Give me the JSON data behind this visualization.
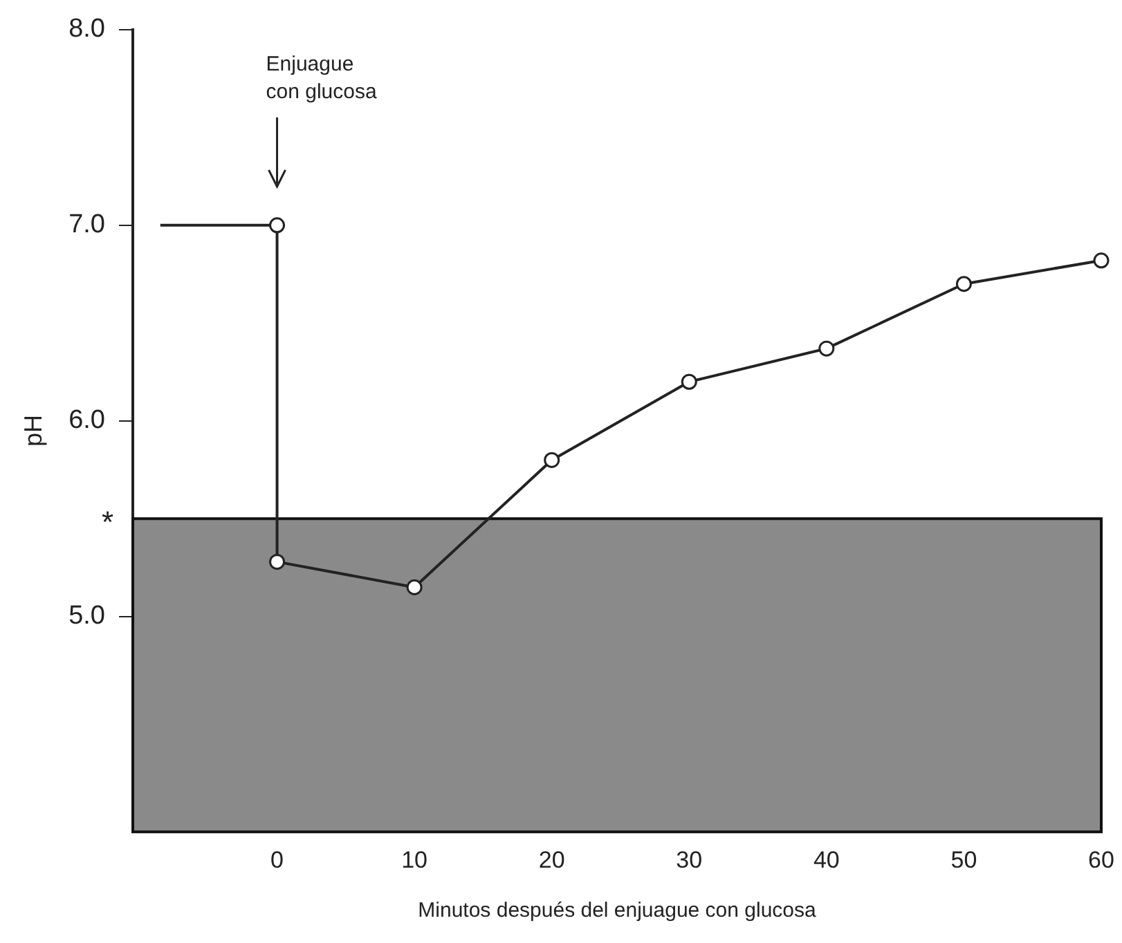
{
  "chart_data": {
    "type": "line",
    "xlabel": "Minutos después del enjuague con glucosa",
    "ylabel": "pH",
    "series": [
      {
        "color": "#222222",
        "x": [
          -8.5,
          0,
          0,
          10,
          20,
          30,
          40,
          50,
          60
        ],
        "values": [
          7.0,
          7.0,
          5.28,
          5.15,
          5.8,
          6.2,
          6.37,
          6.7,
          6.82
        ]
      }
    ],
    "marker": "circle",
    "line_style": "solid",
    "xlim": [
      -10.5,
      60
    ],
    "xticks": [
      0,
      10,
      20,
      30,
      40,
      50,
      60
    ],
    "ylim": [
      3.9,
      8.0
    ],
    "yticks": [
      {
        "value": 5.0,
        "label": "5.0"
      },
      {
        "value": 6.0,
        "label": "6.0"
      },
      {
        "value": 7.0,
        "label": "7.0"
      },
      {
        "value": 8.0,
        "label": "8.0"
      }
    ],
    "bands": [
      {
        "axis": "y",
        "from": 3.9,
        "to": 5.5,
        "label": "*",
        "color": "#8a8a8a"
      }
    ],
    "annotations": [
      "Enjuague con glucosa"
    ],
    "grid": false,
    "legend": false
  }
}
